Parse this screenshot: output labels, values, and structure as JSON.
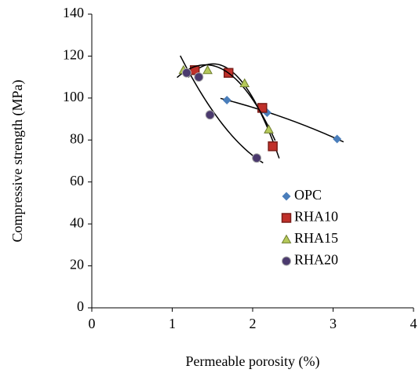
{
  "chart_data": {
    "type": "scatter",
    "x_label": "Permeable porosity (%)",
    "y_label": "Compressive strength (MPa)",
    "xlim": [
      0,
      4
    ],
    "xticks": [
      0,
      1,
      2,
      3,
      4
    ],
    "ylim": [
      0,
      140
    ],
    "yticks": [
      0,
      20,
      40,
      60,
      80,
      100,
      120,
      140
    ],
    "trendline": "poly2",
    "legend": "right",
    "series": [
      {
        "name": "OPC",
        "color": "#4a7ebb",
        "marker": "diamond",
        "x": [
          1.68,
          2.12,
          2.18,
          3.05
        ],
        "y": [
          99,
          94.5,
          93,
          80.5
        ]
      },
      {
        "name": "RHA10",
        "color": "#c0302a",
        "marker": "square",
        "x": [
          1.28,
          1.7,
          2.12,
          2.25
        ],
        "y": [
          113.3,
          112,
          95.3,
          77
        ]
      },
      {
        "name": "RHA15",
        "color": "#b5c95a",
        "marker": "triangle",
        "x": [
          1.14,
          1.44,
          1.9,
          2.2
        ],
        "y": [
          113.3,
          113.3,
          107,
          85
        ]
      },
      {
        "name": "RHA20",
        "color": "#4b3a6e",
        "marker": "circle",
        "x": [
          1.18,
          1.33,
          1.47,
          2.05
        ],
        "y": [
          112,
          110,
          92,
          71.4
        ]
      }
    ]
  }
}
